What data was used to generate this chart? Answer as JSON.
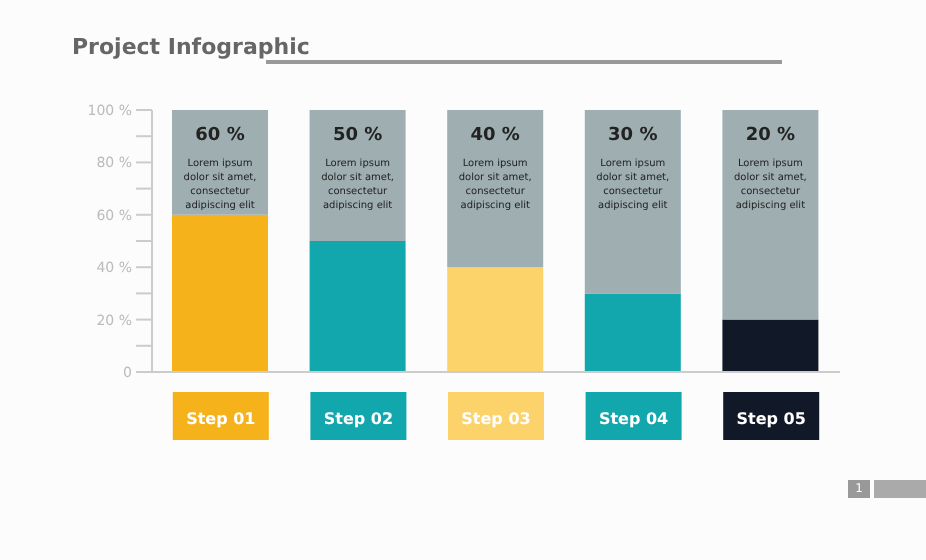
{
  "chart_data": {
    "type": "bar",
    "title": "Project Infographic",
    "categories": [
      "Step 01",
      "Step 02",
      "Step 03",
      "Step 04",
      "Step 05"
    ],
    "stacked": true,
    "series": [
      {
        "color": "#f6b21b",
        "colors": [
          "#f6b21b",
          "#12a6ad",
          "#fcd36b",
          "#12a6ad",
          "#111827"
        ],
        "values": [
          60,
          50,
          40,
          30,
          20
        ]
      },
      {
        "color": "#9eaeb1",
        "values": [
          40,
          50,
          60,
          70,
          80
        ]
      }
    ],
    "ylim": [
      0,
      100
    ],
    "yticks": [
      {
        "value": 0,
        "label": "0"
      },
      {
        "value": 10,
        "label": null
      },
      {
        "value": 20,
        "label": "20 %"
      },
      {
        "value": 30,
        "label": null
      },
      {
        "value": 40,
        "label": "40 %"
      },
      {
        "value": 50,
        "label": null
      },
      {
        "value": 60,
        "label": "60 %"
      },
      {
        "value": 70,
        "label": null
      },
      {
        "value": 80,
        "label": "80 %"
      },
      {
        "value": 90,
        "label": null
      },
      {
        "value": 100,
        "label": "100 %"
      }
    ],
    "grid": false,
    "legend": false,
    "annotations": [
      "60 %",
      "Lorem ipsum dolor sit amet, consectetur adipiscing elit",
      "50 %",
      "Lorem ipsum dolor sit amet, consectetur adipiscing elit",
      "40 %",
      "Lorem ipsum dolor sit amet, consectetur adipiscing elit",
      "30 %",
      "Lorem ipsum dolor sit amet, consectetur adipiscing elit",
      "20 %",
      "Lorem ipsum dolor sit amet, consectetur adipiscing elit",
      "1"
    ]
  }
}
